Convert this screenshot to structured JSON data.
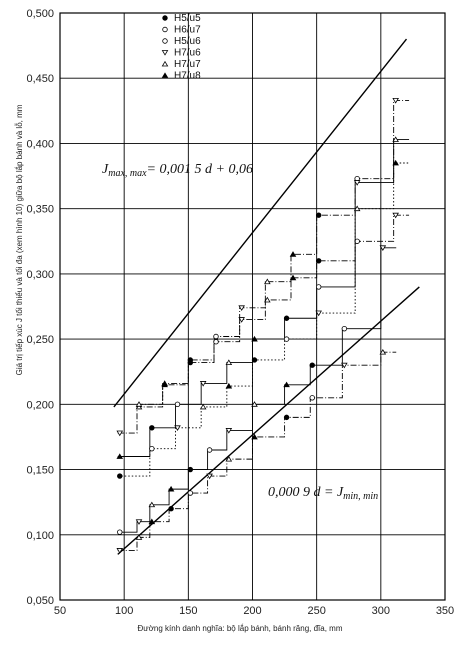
{
  "chart_data": {
    "type": "line",
    "xlabel": "Đường kính danh nghĩa: bộ lắp bánh, bánh răng, đĩa, mm",
    "ylabel": "Giá trị tiếp xúc J tối thiểu và tối đa (xem hình 10) giữa bộ lắp bánh và lỗ, mm",
    "xlim": [
      50,
      350
    ],
    "ylim": [
      0.05,
      0.5
    ],
    "x_ticks": [
      "50",
      "100",
      "150",
      "200",
      "250",
      "300",
      "350"
    ],
    "y_ticks": [
      "0,050",
      "0,100",
      "0,150",
      "0,200",
      "0,250",
      "0,300",
      "0,350",
      "0,400",
      "0,450",
      "0,500"
    ],
    "grid": "horizontal",
    "legend_position": "top-left",
    "legend": [
      {
        "symbol": "filled-circle",
        "label": "H5/u5"
      },
      {
        "symbol": "open-circle",
        "label": "H6/u7"
      },
      {
        "symbol": "open-circle",
        "label": "H5/u6"
      },
      {
        "symbol": "open-triangle-down",
        "label": "H7/u6"
      },
      {
        "symbol": "open-triangle-up",
        "label": "H7/u7"
      },
      {
        "symbol": "filled-triangle-up",
        "label": "H7/u8"
      }
    ],
    "annotations": [
      {
        "text": "J",
        "sub": "max, max",
        "rest": "= 0,001 5 d + 0,06"
      },
      {
        "text": "0,000 9 d = J",
        "sub": "min, min",
        "rest": ""
      }
    ],
    "series": [
      {
        "kind": "line",
        "x": [
          92,
          320
        ],
        "y": [
          0.198,
          0.48
        ]
      },
      {
        "kind": "line",
        "x": [
          95,
          330
        ],
        "y": [
          0.085,
          0.29
        ]
      },
      {
        "kind": "step-dashdot",
        "x": [
          95,
          110,
          130,
          150,
          170,
          190,
          210,
          230,
          250,
          280,
          310
        ],
        "y": [
          0.178,
          0.198,
          0.215,
          0.232,
          0.248,
          0.265,
          0.28,
          0.297,
          0.31,
          0.325,
          0.345
        ]
      },
      {
        "kind": "step-dashdot",
        "x": [
          110,
          130,
          150,
          170,
          190,
          210,
          230,
          250,
          280,
          310
        ],
        "y": [
          0.2,
          0.216,
          0.234,
          0.252,
          0.274,
          0.294,
          0.315,
          0.345,
          0.373,
          0.433
        ]
      },
      {
        "kind": "step-solid",
        "x": [
          95,
          120,
          140,
          160,
          180,
          200,
          225,
          250,
          280,
          310
        ],
        "y": [
          0.16,
          0.182,
          0.2,
          0.216,
          0.232,
          0.25,
          0.266,
          0.29,
          0.37,
          0.403
        ]
      },
      {
        "kind": "step-dotted",
        "x": [
          95,
          120,
          140,
          160,
          180,
          200,
          225,
          250,
          280,
          310
        ],
        "y": [
          0.145,
          0.166,
          0.182,
          0.198,
          0.214,
          0.234,
          0.25,
          0.27,
          0.35,
          0.385
        ]
      },
      {
        "kind": "step-solid",
        "x": [
          95,
          110,
          120,
          135,
          150,
          165,
          180,
          200,
          225,
          245,
          270,
          300
        ],
        "y": [
          0.102,
          0.11,
          0.123,
          0.135,
          0.15,
          0.165,
          0.18,
          0.2,
          0.215,
          0.23,
          0.258,
          0.32
        ]
      },
      {
        "kind": "step-dashdot",
        "x": [
          95,
          110,
          120,
          135,
          150,
          165,
          180,
          200,
          225,
          245,
          270,
          300
        ],
        "y": [
          0.088,
          0.098,
          0.11,
          0.12,
          0.132,
          0.145,
          0.158,
          0.175,
          0.19,
          0.205,
          0.23,
          0.24
        ]
      }
    ]
  }
}
